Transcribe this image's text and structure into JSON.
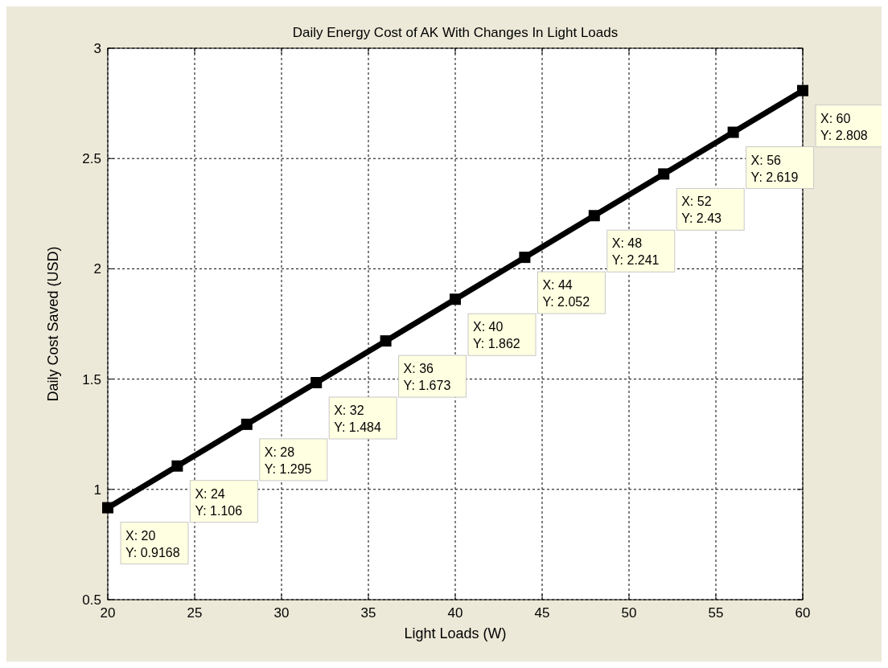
{
  "chart_data": {
    "type": "line",
    "title": "Daily Energy Cost of AK With Changes In Light Loads",
    "xlabel": "Light Loads (W)",
    "ylabel": "Daily Cost Saved (USD)",
    "x": [
      20,
      24,
      28,
      32,
      36,
      40,
      44,
      48,
      52,
      56,
      60
    ],
    "series": [
      {
        "color": "#000000",
        "values": [
          0.9168,
          1.106,
          1.295,
          1.484,
          1.673,
          1.862,
          2.052,
          2.241,
          2.43,
          2.619,
          2.808
        ]
      }
    ],
    "annotations": [
      {
        "text": "X: 20\nY: 0.9168",
        "x": 20,
        "y": 0.9168
      },
      {
        "text": "X: 24\nY: 1.106",
        "x": 24,
        "y": 1.106
      },
      {
        "text": "X: 28\nY: 1.295",
        "x": 28,
        "y": 1.295
      },
      {
        "text": "X: 32\nY: 1.484",
        "x": 32,
        "y": 1.484
      },
      {
        "text": "X: 36\nY: 1.673",
        "x": 36,
        "y": 1.673
      },
      {
        "text": "X: 40\nY: 1.862",
        "x": 40,
        "y": 1.862
      },
      {
        "text": "X: 44\nY: 2.052",
        "x": 44,
        "y": 2.052
      },
      {
        "text": "X: 48\nY: 2.241",
        "x": 48,
        "y": 2.241
      },
      {
        "text": "X: 52\nY: 2.43",
        "x": 52,
        "y": 2.43
      },
      {
        "text": "X: 56\nY: 2.619",
        "x": 56,
        "y": 2.619
      },
      {
        "text": "X: 60\nY: 2.808",
        "x": 60,
        "y": 2.808
      }
    ],
    "xlim": [
      20,
      60
    ],
    "xticks": [
      20,
      25,
      30,
      35,
      40,
      45,
      50,
      55,
      60
    ],
    "ylim": [
      0.5,
      3
    ],
    "yticks": [
      0.5,
      1,
      1.5,
      2,
      2.5,
      3
    ],
    "grid": true,
    "marker": "square",
    "line_style": "solid"
  }
}
